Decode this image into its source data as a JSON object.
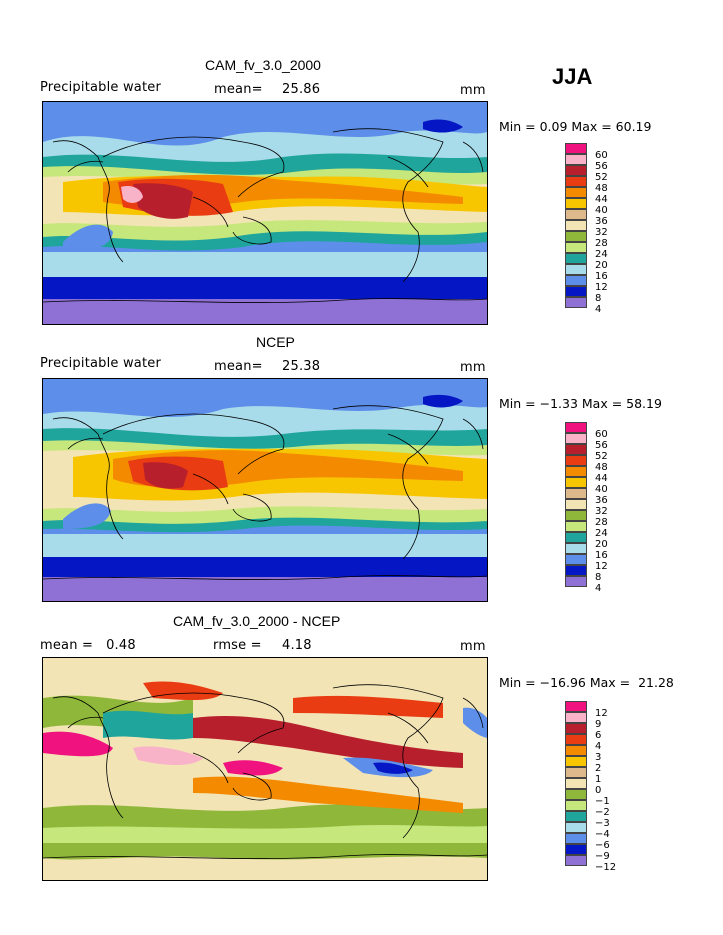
{
  "season": "JJA",
  "panels": [
    {
      "title": "CAM_fv_3.0_2000",
      "left_label": "Precipitable water",
      "stat_label": "mean=",
      "stat_value": "25.86",
      "units": "mm",
      "minmax": "Min =   0.09 Max =  60.19",
      "colorbar": {
        "labels": [
          "60",
          "56",
          "52",
          "48",
          "44",
          "40",
          "36",
          "32",
          "28",
          "24",
          "20",
          "16",
          "12",
          "8",
          "4"
        ],
        "colors": [
          "#f0127f",
          "#f9b3c8",
          "#b81f2d",
          "#ea3c12",
          "#f48a00",
          "#f8c600",
          "#ddb98b",
          "#f3e4b6",
          "#8fb83a",
          "#c6e77b",
          "#1fa59c",
          "#a9dcea",
          "#5d8ee9",
          "#0516c4",
          "#8f71d6"
        ]
      }
    },
    {
      "title": "NCEP",
      "left_label": "Precipitable water",
      "stat_label": "mean=",
      "stat_value": "25.38",
      "units": "mm",
      "minmax": "Min =  −1.33 Max =  58.19",
      "colorbar": {
        "labels": [
          "60",
          "56",
          "52",
          "48",
          "44",
          "40",
          "36",
          "32",
          "28",
          "24",
          "20",
          "16",
          "12",
          "8",
          "4"
        ],
        "colors": [
          "#f0127f",
          "#f9b3c8",
          "#b81f2d",
          "#ea3c12",
          "#f48a00",
          "#f8c600",
          "#ddb98b",
          "#f3e4b6",
          "#8fb83a",
          "#c6e77b",
          "#1fa59c",
          "#a9dcea",
          "#5d8ee9",
          "#0516c4",
          "#8f71d6"
        ]
      }
    },
    {
      "title": "CAM_fv_3.0_2000 - NCEP",
      "left_label": "mean =   0.48",
      "stat_label": "rmse =",
      "stat_value": "4.18",
      "units": "mm",
      "minmax": "Min = −16.96 Max =  21.28",
      "colorbar": {
        "labels": [
          "12",
          "9",
          "6",
          "4",
          "3",
          "2",
          "1",
          "0",
          "−1",
          "−2",
          "−3",
          "−4",
          "−6",
          "−9",
          "−12"
        ],
        "colors": [
          "#f0127f",
          "#f9b3c8",
          "#b81f2d",
          "#ea3c12",
          "#f48a00",
          "#f8c600",
          "#ddb98b",
          "#f3e4b6",
          "#8fb83a",
          "#c6e77b",
          "#1fa59c",
          "#a9dcea",
          "#5d8ee9",
          "#0516c4",
          "#8f71d6"
        ]
      }
    }
  ]
}
